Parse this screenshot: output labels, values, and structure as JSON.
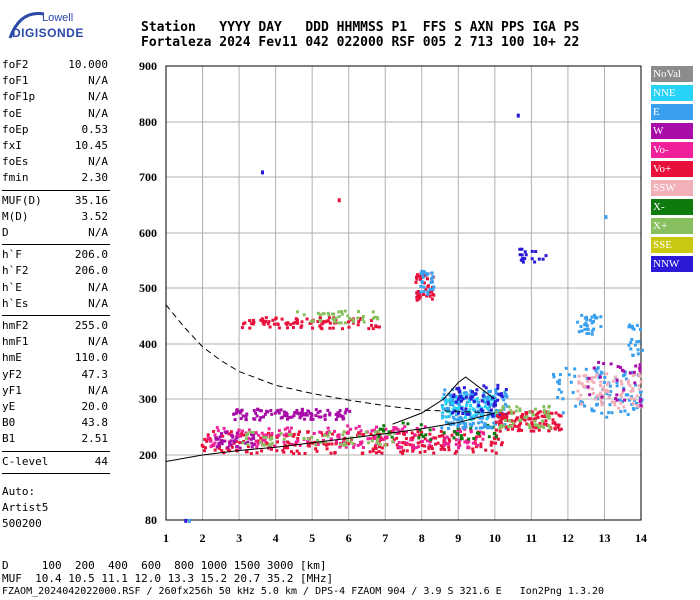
{
  "logo": {
    "line1": "Lowell",
    "line2": "DIGISONDE"
  },
  "header": {
    "line1": "Station   YYYY DAY   DDD HHMMSS P1  FFS S AXN PPS IGA PS",
    "line2": "Fortaleza 2024 Fev11 042 022000 RSF 005 2 713 100 10+ 22"
  },
  "params": {
    "group1": [
      {
        "k": "foF2",
        "v": "10.000"
      },
      {
        "k": "foF1",
        "v": "N/A"
      },
      {
        "k": "foF1p",
        "v": "N/A"
      },
      {
        "k": "foE",
        "v": "N/A"
      },
      {
        "k": "foEp",
        "v": "0.53"
      },
      {
        "k": "fxI",
        "v": "10.45"
      },
      {
        "k": "foEs",
        "v": "N/A"
      },
      {
        "k": "fmin",
        "v": "2.30"
      }
    ],
    "group2": [
      {
        "k": "MUF(D)",
        "v": "35.16"
      },
      {
        "k": "M(D)",
        "v": "3.52"
      },
      {
        "k": "D",
        "v": "N/A"
      }
    ],
    "group3": [
      {
        "k": "h`F",
        "v": "206.0"
      },
      {
        "k": "h`F2",
        "v": "206.0"
      },
      {
        "k": "h`E",
        "v": "N/A"
      },
      {
        "k": "h`Es",
        "v": "N/A"
      }
    ],
    "group4": [
      {
        "k": "hmF2",
        "v": "255.0"
      },
      {
        "k": "hmF1",
        "v": "N/A"
      },
      {
        "k": "hmE",
        "v": "110.0"
      },
      {
        "k": "yF2",
        "v": "47.3"
      },
      {
        "k": "yF1",
        "v": "N/A"
      },
      {
        "k": "yE",
        "v": "20.0"
      },
      {
        "k": "B0",
        "v": "43.8"
      },
      {
        "k": "B1",
        "v": "2.51"
      }
    ],
    "clevel": {
      "k": "C-level",
      "v": "44"
    },
    "auto": [
      "Auto:",
      "Artist5",
      "500200"
    ]
  },
  "footer": {
    "d_line": "D     100  200  400  600  800 1000 1500 3000 [km]",
    "muf_line": "MUF  10.4 10.5 11.1 12.0 13.3 15.2 20.7 35.2 [MHz]",
    "file_line": "FZAOM_2024042022000.RSF / 260fx256h 50 kHz 5.0 km / DPS-4 FZAOM 904 / 3.9 S 321.6 E   Ion2Png 1.3.20"
  },
  "legend": [
    {
      "label": "NoVal",
      "color": "#8c8c8c"
    },
    {
      "label": "NNE",
      "color": "#27d3f5"
    },
    {
      "label": "E",
      "color": "#39a0f0"
    },
    {
      "label": "W",
      "color": "#a80ca8"
    },
    {
      "label": "Vo-",
      "color": "#f0209a"
    },
    {
      "label": "Vo+",
      "color": "#e8103a"
    },
    {
      "label": "SSW",
      "color": "#f2b0b8"
    },
    {
      "label": "X-",
      "color": "#0e7a0e"
    },
    {
      "label": "X+",
      "color": "#88c060"
    },
    {
      "label": "SSE",
      "color": "#c8c810"
    },
    {
      "label": "NNW",
      "color": "#2a1ad8"
    }
  ],
  "chart_data": {
    "type": "scatter",
    "title": "",
    "xlabel": "",
    "ylabel": "",
    "xlim": [
      1,
      14
    ],
    "ylim": [
      80,
      900
    ],
    "x_ticks": [
      "1",
      "2",
      "3",
      "4",
      "5",
      "6",
      "7",
      "8",
      "9",
      "10",
      "11",
      "12",
      "13",
      "14"
    ],
    "y_ticks": [
      "900",
      "800",
      "700",
      "600",
      "500",
      "400",
      "300",
      "200",
      "80"
    ],
    "y_tick_values": [
      900,
      800,
      700,
      600,
      500,
      400,
      300,
      200,
      80
    ],
    "grid": true,
    "clusters": [
      {
        "name": "Vo+",
        "color": "#e8103a",
        "xmin": 1.9,
        "xmax": 10.2,
        "ymin": 205,
        "ymax": 245,
        "n": 260
      },
      {
        "name": "Vo-",
        "color": "#f0209a",
        "xmin": 2.1,
        "xmax": 9.8,
        "ymin": 215,
        "ymax": 255,
        "n": 180
      },
      {
        "name": "W",
        "color": "#a80ca8",
        "xmin": 2.8,
        "xmax": 6.0,
        "ymin": 265,
        "ymax": 285,
        "n": 110
      },
      {
        "name": "W",
        "color": "#a80ca8",
        "xmin": 2.3,
        "xmax": 3.4,
        "ymin": 215,
        "ymax": 245,
        "n": 40
      },
      {
        "name": "X+",
        "color": "#88c060",
        "xmin": 3.0,
        "xmax": 7.5,
        "ymin": 220,
        "ymax": 245,
        "n": 60
      },
      {
        "name": "X-",
        "color": "#0e7a0e",
        "xmin": 6.5,
        "xmax": 10.0,
        "ymin": 230,
        "ymax": 260,
        "n": 40
      },
      {
        "name": "E",
        "color": "#39a0f0",
        "xmin": 8.5,
        "xmax": 10.3,
        "ymin": 250,
        "ymax": 320,
        "n": 200
      },
      {
        "name": "NNE",
        "color": "#27d3f5",
        "xmin": 8.5,
        "xmax": 10.0,
        "ymin": 265,
        "ymax": 310,
        "n": 70
      },
      {
        "name": "NNW",
        "color": "#2a1ad8",
        "xmin": 8.8,
        "xmax": 10.3,
        "ymin": 270,
        "ymax": 330,
        "n": 60
      },
      {
        "name": "Vo+",
        "color": "#e8103a",
        "xmin": 10.0,
        "xmax": 11.8,
        "ymin": 245,
        "ymax": 280,
        "n": 110
      },
      {
        "name": "X+",
        "color": "#88c060",
        "xmin": 10.0,
        "xmax": 11.5,
        "ymin": 250,
        "ymax": 290,
        "n": 50
      },
      {
        "name": "E",
        "color": "#39a0f0",
        "xmin": 11.5,
        "xmax": 14.0,
        "ymin": 270,
        "ymax": 360,
        "n": 90
      },
      {
        "name": "SSW",
        "color": "#f2b0b8",
        "xmin": 12.2,
        "xmax": 14.0,
        "ymin": 285,
        "ymax": 350,
        "n": 80
      },
      {
        "name": "W",
        "color": "#a80ca8",
        "xmin": 12.5,
        "xmax": 14.0,
        "ymin": 290,
        "ymax": 370,
        "n": 30
      },
      {
        "name": "Vo+",
        "color": "#e8103a",
        "xmin": 3.0,
        "xmax": 6.8,
        "ymin": 430,
        "ymax": 450,
        "n": 90
      },
      {
        "name": "X+",
        "color": "#88c060",
        "xmin": 4.5,
        "xmax": 6.8,
        "ymin": 440,
        "ymax": 462,
        "n": 40
      },
      {
        "name": "Vo+",
        "color": "#e8103a",
        "xmin": 7.8,
        "xmax": 8.3,
        "ymin": 480,
        "ymax": 530,
        "n": 40
      },
      {
        "name": "E",
        "color": "#39a0f0",
        "xmin": 7.9,
        "xmax": 8.3,
        "ymin": 490,
        "ymax": 535,
        "n": 25
      },
      {
        "name": "NNW",
        "color": "#2a1ad8",
        "xmin": 10.6,
        "xmax": 11.4,
        "ymin": 545,
        "ymax": 575,
        "n": 18
      },
      {
        "name": "E",
        "color": "#39a0f0",
        "xmin": 12.2,
        "xmax": 12.9,
        "ymin": 420,
        "ymax": 455,
        "n": 30
      },
      {
        "name": "E",
        "color": "#39a0f0",
        "xmin": 13.6,
        "xmax": 14.0,
        "ymin": 380,
        "ymax": 440,
        "n": 20
      }
    ],
    "points": [
      {
        "x": 1.5,
        "y": 82,
        "color": "#2a1ad8"
      },
      {
        "x": 1.6,
        "y": 82,
        "color": "#39a0f0"
      },
      {
        "x": 10.6,
        "y": 815,
        "color": "#2a1ad8"
      },
      {
        "x": 3.6,
        "y": 712,
        "color": "#2a1ad8"
      },
      {
        "x": 5.7,
        "y": 662,
        "color": "#e8103a"
      },
      {
        "x": 13.0,
        "y": 632,
        "color": "#39a0f0"
      }
    ],
    "lines": [
      {
        "name": "trace",
        "style": "solid",
        "x": [
          1.0,
          2.0,
          3.0,
          4.0,
          5.0,
          6.0,
          7.0,
          8.0,
          9.0,
          10.0
        ],
        "y": [
          188,
          200,
          208,
          214,
          222,
          230,
          238,
          247,
          258,
          275
        ]
      },
      {
        "name": "model",
        "style": "dashed",
        "x": [
          1.0,
          1.5,
          2.0,
          2.5,
          3.0,
          4.0,
          5.0,
          6.0,
          7.0,
          8.0,
          9.0,
          10.0
        ],
        "y": [
          470,
          430,
          395,
          370,
          350,
          325,
          310,
          298,
          288,
          280,
          278,
          275
        ]
      },
      {
        "name": "profile",
        "style": "solid",
        "x": [
          7.2,
          8.0,
          8.6,
          9.0,
          9.2,
          9.6,
          10.0
        ],
        "y": [
          255,
          275,
          300,
          330,
          340,
          320,
          300
        ]
      }
    ]
  }
}
